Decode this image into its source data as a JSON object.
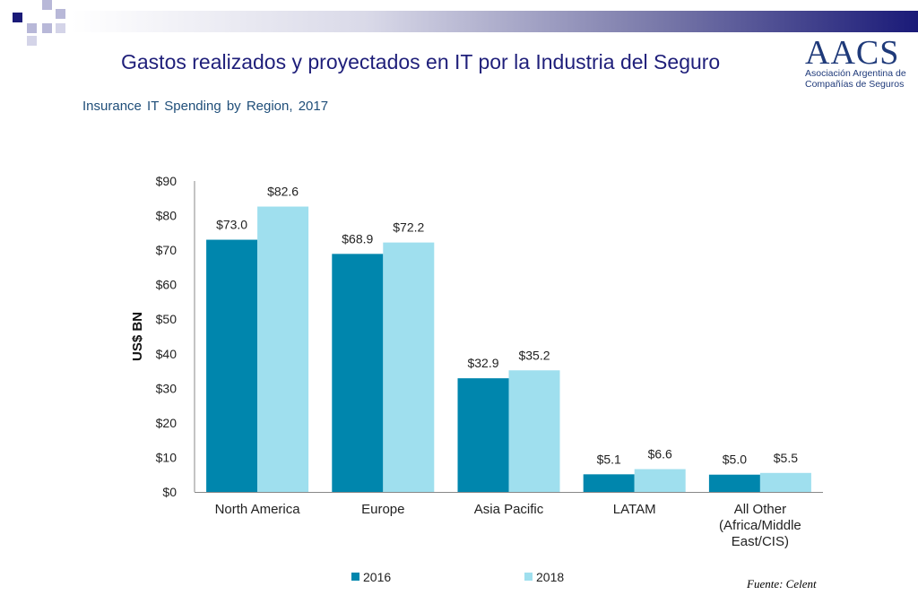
{
  "slide": {
    "title": "Gastos realizados y proyectados en IT por la Industria del Seguro",
    "source": "Fuente: Celent"
  },
  "logo": {
    "main": "AACS",
    "line1": "Asociación Argentina de",
    "line2": "Compañías de Seguros"
  },
  "colors": {
    "series_2016": "#0086ad",
    "series_2018": "#9fdfee",
    "title": "#1f1f7a",
    "subtitle": "#1f4e79"
  },
  "chart_data": {
    "type": "bar",
    "title": "Insurance  IT  Spending by Region, 2017",
    "ylabel": "US$ BN",
    "xlabel": "",
    "ylim": [
      0,
      90
    ],
    "yticks": [
      0,
      10,
      20,
      30,
      40,
      50,
      60,
      70,
      80,
      90
    ],
    "ytick_labels": [
      "$0",
      "$10",
      "$20",
      "$30",
      "$40",
      "$50",
      "$60",
      "$70",
      "$80",
      "$90"
    ],
    "categories": [
      [
        "North America"
      ],
      [
        "Europe"
      ],
      [
        "Asia Pacific"
      ],
      [
        "LATAM"
      ],
      [
        "All Other",
        "(Africa/Middle",
        "East/CIS)"
      ]
    ],
    "series": [
      {
        "name": "2016",
        "values": [
          73.0,
          68.9,
          32.9,
          5.1,
          5.0
        ],
        "labels": [
          "$73.0",
          "$68.9",
          "$32.9",
          "$5.1",
          "$5.0"
        ]
      },
      {
        "name": "2018",
        "values": [
          82.6,
          72.2,
          35.2,
          6.6,
          5.5
        ],
        "labels": [
          "$82.6",
          "$72.2",
          "$35.2",
          "$6.6",
          "$5.5"
        ]
      }
    ],
    "legend": "bottom"
  }
}
